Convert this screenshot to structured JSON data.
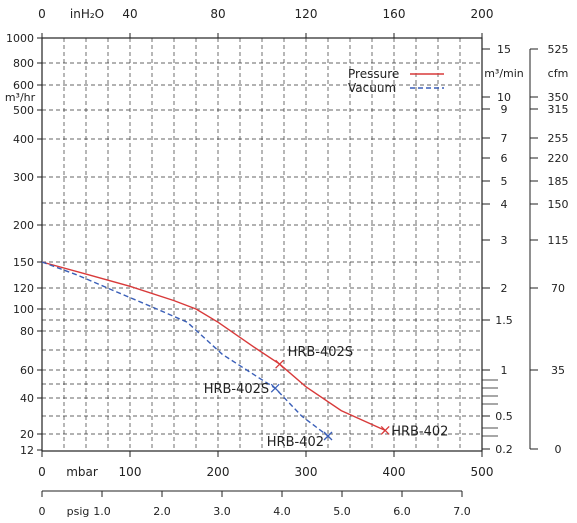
{
  "chart_data": {
    "type": "line",
    "title": "",
    "axes": {
      "top_inh2o": {
        "unit": "inH₂O",
        "ticks": [
          "0",
          "40",
          "80",
          "120",
          "160",
          "200"
        ],
        "range": [
          0,
          200
        ]
      },
      "bottom_mbar": {
        "unit": "mbar",
        "ticks": [
          "0",
          "100",
          "200",
          "300",
          "400",
          "500"
        ],
        "range": [
          0,
          500
        ]
      },
      "bottom_psig": {
        "unit": "psig",
        "ticks": [
          "0",
          "1.0",
          "2.0",
          "3.0",
          "4.0",
          "5.0",
          "6.0",
          "7.0"
        ],
        "range": [
          0,
          7.0
        ]
      },
      "left_m3hr": {
        "unit": "m³/hr",
        "ticks": [
          {
            "label": "1000",
            "v": 1000
          },
          {
            "label": "800",
            "v": 800
          },
          {
            "label": "600",
            "v": 600
          },
          {
            "label": "500",
            "v": 500
          },
          {
            "label": "400",
            "v": 400
          },
          {
            "label": "300",
            "v": 300
          },
          {
            "label": "200",
            "v": 200
          },
          {
            "label": "150",
            "v": 150
          },
          {
            "label": "120",
            "v": 120
          },
          {
            "label": "100",
            "v": 100
          },
          {
            "label": "80",
            "v": 80
          },
          {
            "label": "60",
            "v": 60
          },
          {
            "label": "40",
            "v": 40
          },
          {
            "label": "20",
            "v": 20
          },
          {
            "label": "12",
            "v": 12
          }
        ]
      },
      "right_m3min": {
        "unit": "m³/min",
        "ticks": [
          {
            "label": "15",
            "v": 15
          },
          {
            "label": "10",
            "v": 10
          },
          {
            "label": "9",
            "v": 9
          },
          {
            "label": "7",
            "v": 7
          },
          {
            "label": "6",
            "v": 6
          },
          {
            "label": "5",
            "v": 5
          },
          {
            "label": "4",
            "v": 4
          },
          {
            "label": "3",
            "v": 3
          },
          {
            "label": "2",
            "v": 2
          },
          {
            "label": "1.5",
            "v": 1.5
          },
          {
            "label": "1",
            "v": 1
          },
          {
            "label": "0.5",
            "v": 0.5
          },
          {
            "label": "0.2",
            "v": 0.2
          }
        ]
      },
      "right_cfm": {
        "unit": "cfm",
        "ticks": [
          {
            "label": "525",
            "v": 525
          },
          {
            "label": "350",
            "v": 350
          },
          {
            "label": "315",
            "v": 315
          },
          {
            "label": "255",
            "v": 255
          },
          {
            "label": "220",
            "v": 220
          },
          {
            "label": "185",
            "v": 185
          },
          {
            "label": "150",
            "v": 150
          },
          {
            "label": "115",
            "v": 115
          },
          {
            "label": "70",
            "v": 70
          },
          {
            "label": "35",
            "v": 35
          },
          {
            "label": "0",
            "v": 0
          }
        ]
      }
    },
    "grid": true,
    "legend_position": "top-right",
    "series": [
      {
        "name": "Pressure",
        "color": "#d83a3a",
        "dash": "solid",
        "points": [
          [
            0,
            150
          ],
          [
            50,
            136
          ],
          [
            100,
            122
          ],
          [
            150,
            108
          ],
          [
            175,
            100
          ],
          [
            200,
            88
          ],
          [
            240,
            72
          ],
          [
            270,
            63
          ],
          [
            300,
            48
          ],
          [
            340,
            33
          ],
          [
            390,
            22
          ]
        ],
        "markers": [
          {
            "x": 270,
            "y": 63,
            "label": "HRB-402S"
          },
          {
            "x": 390,
            "y": 22,
            "label": "HRB-402"
          }
        ]
      },
      {
        "name": "Vacuum",
        "color": "#3a5fb8",
        "dash": "dashed",
        "points": [
          [
            0,
            150
          ],
          [
            40,
            135
          ],
          [
            80,
            118
          ],
          [
            125,
            102
          ],
          [
            165,
            88
          ],
          [
            205,
            68
          ],
          [
            245,
            55
          ],
          [
            265,
            47
          ],
          [
            295,
            30
          ],
          [
            325,
            19
          ]
        ],
        "markers": [
          {
            "x": 265,
            "y": 47,
            "label": "HRB-402S"
          },
          {
            "x": 325,
            "y": 19,
            "label": "HRB-402"
          }
        ]
      }
    ]
  }
}
